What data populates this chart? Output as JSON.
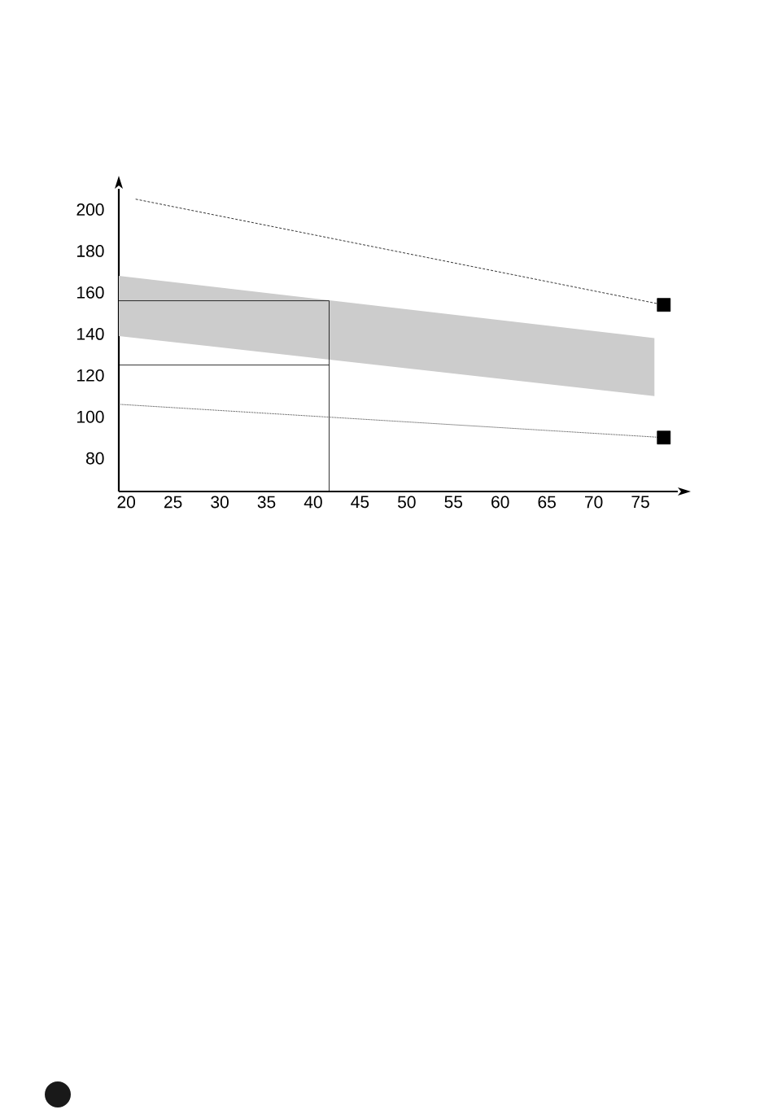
{
  "chart_data": {
    "type": "line",
    "xlim": [
      19.2,
      79
    ],
    "ylim": [
      64,
      210
    ],
    "xticks": [
      20,
      25,
      30,
      35,
      40,
      45,
      50,
      55,
      60,
      65,
      70,
      75
    ],
    "yticks": [
      80,
      100,
      120,
      140,
      160,
      180,
      200
    ],
    "grid": false,
    "series": [
      {
        "color": "#cccccc",
        "x": [
          19.2,
          76.5
        ],
        "values": [
          null,
          null
        ],
        "lower": [
          139,
          110
        ],
        "upper": [
          168,
          138
        ]
      },
      {
        "color": "#000000",
        "x": [
          21,
          77.5
        ],
        "values": [
          205,
          154
        ],
        "line_style": "dashed",
        "marker": "square"
      },
      {
        "color": "#000000",
        "x": [
          19.4,
          77.5
        ],
        "values": [
          106,
          90
        ],
        "line_style": "dotted",
        "marker": "square"
      },
      {
        "color": "#000000",
        "x": [
          19.2,
          41.7,
          41.7
        ],
        "values": [
          156,
          156,
          64
        ],
        "line_style": "solid",
        "marker": "none"
      },
      {
        "color": "#000000",
        "x": [
          19.2,
          41.7
        ],
        "values": [
          125,
          125
        ],
        "line_style": "solid",
        "marker": "none"
      }
    ]
  }
}
